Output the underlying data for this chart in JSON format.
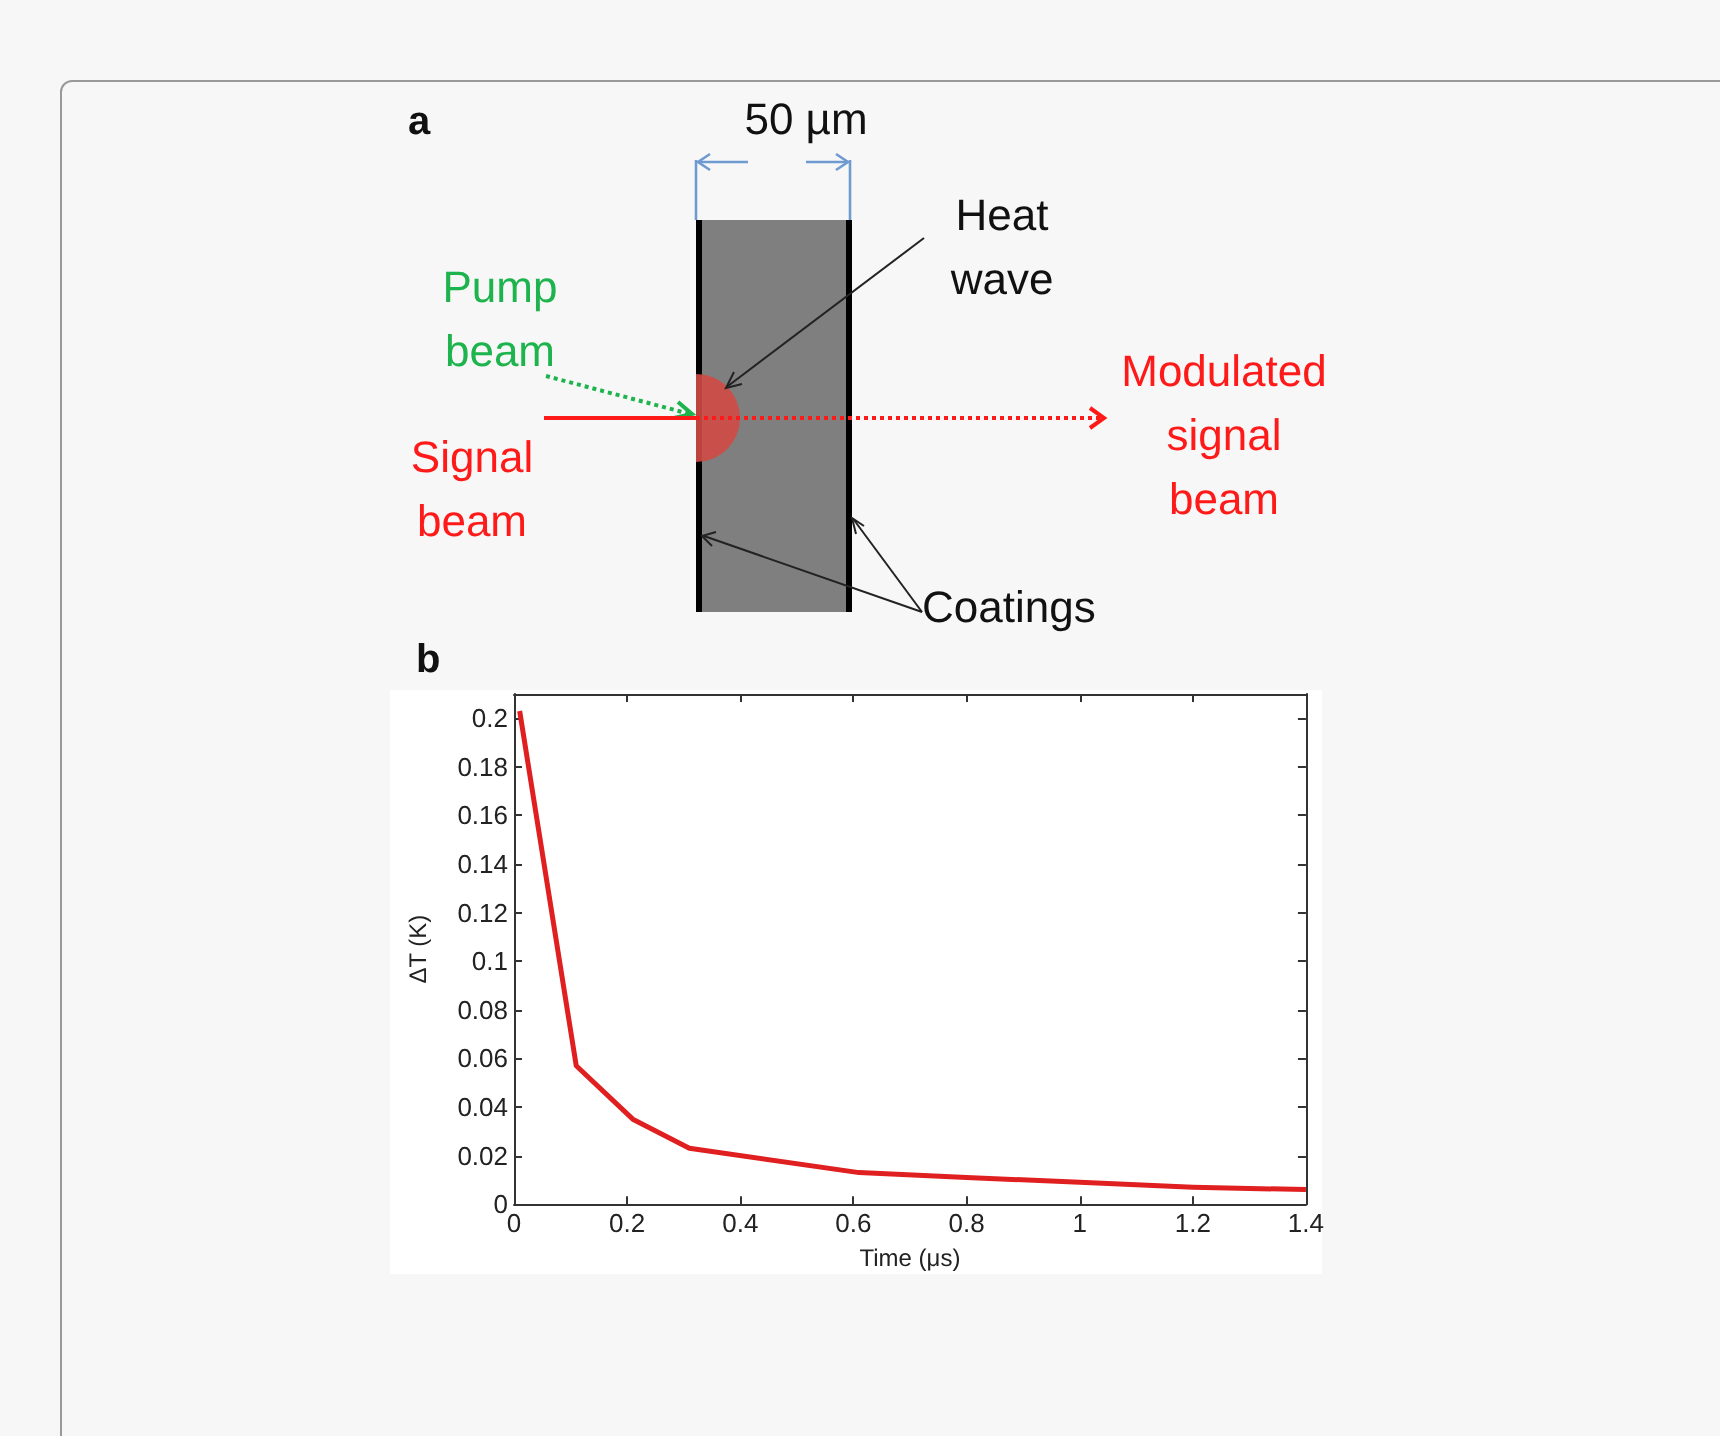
{
  "chart_data": [
    {
      "type": "other",
      "title": "a",
      "annotations": [
        "50 µm",
        "Heat wave",
        "Pump beam",
        "Signal beam",
        "Modulated signal beam",
        "Coatings"
      ]
    },
    {
      "type": "line",
      "title": "b",
      "xlabel": "Time (μs)",
      "ylabel": "ΔT (K)",
      "x": [
        0.01,
        0.11,
        0.21,
        0.31,
        0.61,
        0.8,
        1.0,
        1.2,
        1.4
      ],
      "values": [
        0.203,
        0.057,
        0.035,
        0.023,
        0.013,
        0.011,
        0.009,
        0.007,
        0.006
      ],
      "color": "#e02020",
      "xlim": [
        0,
        1.4
      ],
      "ylim": [
        0,
        0.21
      ],
      "xticks": [
        0,
        0.2,
        0.4,
        0.6,
        0.8,
        1,
        1.2,
        1.4
      ],
      "yticks": [
        0,
        0.02,
        0.04,
        0.06,
        0.08,
        0.1,
        0.12,
        0.14,
        0.16,
        0.18,
        0.2
      ]
    }
  ]
}
